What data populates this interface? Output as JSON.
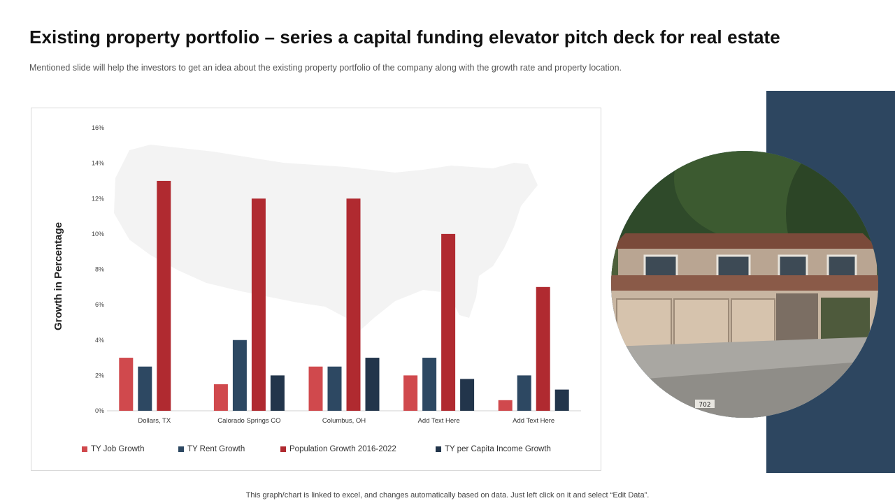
{
  "header": {
    "title": "Existing property portfolio – series a capital funding elevator pitch deck for real estate",
    "subtitle": "Mentioned slide will help the investors to get an idea about the existing property portfolio of the company along with the growth rate and property location."
  },
  "footer": {
    "note": "This graph/chart is linked to excel, and changes automatically based on data. Just left click on it and select “Edit Data”."
  },
  "photo": {
    "house_number": "702"
  },
  "chart_data": {
    "type": "bar",
    "title": "",
    "xlabel": "",
    "ylabel": "Growth in Percentage",
    "ylim": [
      0,
      16
    ],
    "yticks": [
      0,
      2,
      4,
      6,
      8,
      10,
      12,
      14,
      16
    ],
    "ytick_suffix": "%",
    "grid": false,
    "legend_position": "bottom",
    "categories": [
      "Dollars, TX",
      "Calorado Springs CO",
      "Columbus, OH",
      "Add Text Here",
      "Add Text Here"
    ],
    "series": [
      {
        "name": "TY Job Growth",
        "color": "#d0494d",
        "values": [
          3,
          1.5,
          2.5,
          2,
          0.6
        ]
      },
      {
        "name": "TY Rent Growth",
        "color": "#2d4862",
        "values": [
          2.5,
          4,
          2.5,
          3,
          2
        ]
      },
      {
        "name": "Population Growth 2016-2022",
        "color": "#b02a30",
        "values": [
          13,
          12,
          12,
          10,
          7
        ]
      },
      {
        "name": "TY per Capita Income Growth",
        "color": "#22354b",
        "values": [
          0,
          2,
          3,
          1.8,
          1.2
        ]
      }
    ]
  }
}
